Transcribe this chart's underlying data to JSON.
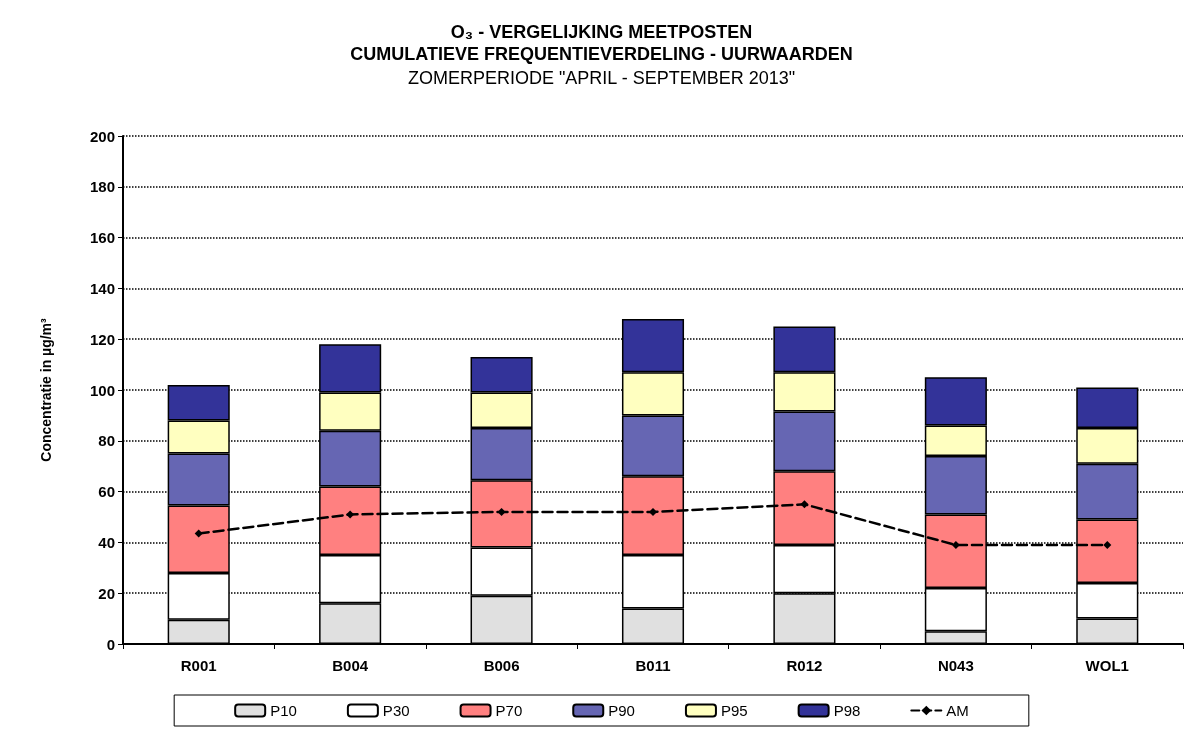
{
  "chart_data": {
    "type": "bar",
    "title": "O₃ - VERGELIJKING MEETPOSTEN\nCUMULATIEVE FREQUENTIEVERDELING - UURWAARDEN",
    "subtitle": "ZOMERPERIODE \"APRIL - SEPTEMBER 2013\"",
    "ylabel": "Concentratie in µg/m³",
    "categories": [
      "R001",
      "B004",
      "B006",
      "B011",
      "R012",
      "N043",
      "WOL1"
    ],
    "stacked": true,
    "series": [
      {
        "name": "P10",
        "color": "#e0e0e0",
        "values": [
          9.5,
          16,
          19,
          14,
          20,
          5,
          10
        ]
      },
      {
        "name": "P30",
        "color": "#ffffff",
        "values": [
          18.5,
          19,
          19,
          21,
          19,
          17,
          14
        ]
      },
      {
        "name": "P70",
        "color": "#ff8080",
        "values": [
          26.5,
          27,
          26.5,
          31,
          29,
          29,
          25
        ]
      },
      {
        "name": "P90",
        "color": "#6666b3",
        "values": [
          20.5,
          22,
          20.5,
          24,
          23.5,
          23,
          22
        ]
      },
      {
        "name": "P95",
        "color": "#ffffc0",
        "values": [
          13,
          15,
          14,
          17,
          15.5,
          12,
          14
        ]
      },
      {
        "name": "P98",
        "color": "#333399",
        "values": [
          14,
          19,
          14,
          21,
          18,
          19,
          16
        ]
      },
      {
        "name": "AM",
        "type": "line",
        "color": "#000000",
        "values": [
          43.5,
          51,
          52,
          52,
          55,
          39,
          39
        ]
      }
    ],
    "ylim": [
      0,
      200
    ],
    "yticks": [
      0,
      20,
      40,
      60,
      80,
      100,
      120,
      140,
      160,
      180,
      200
    ],
    "grid": "y",
    "legend": "bottom",
    "marker": "diamond",
    "line_style": "dashed"
  }
}
